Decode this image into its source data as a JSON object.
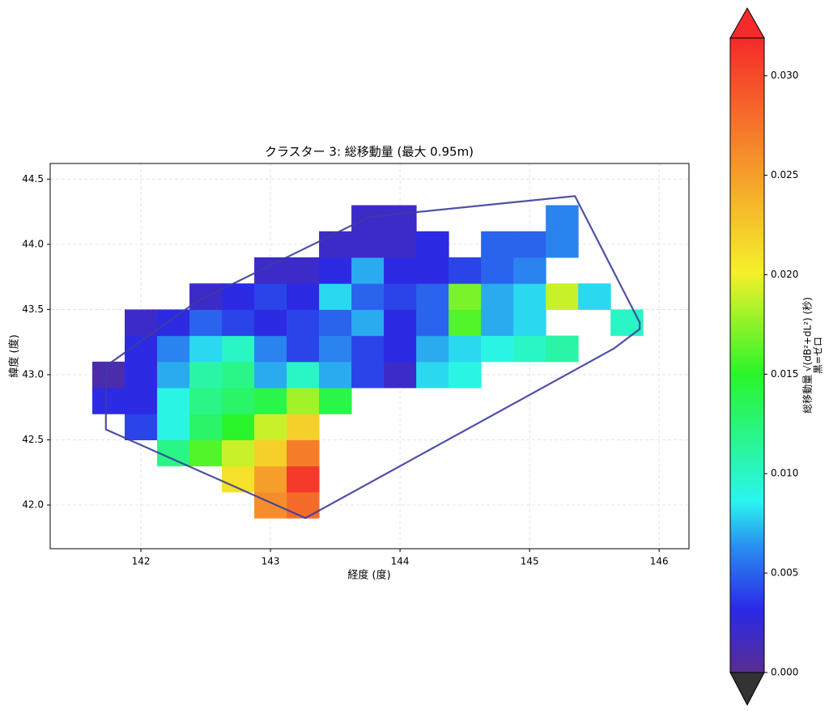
{
  "chart_data": {
    "type": "heatmap",
    "title": "クラスター 3: 総移動量 (最大 0.95m)",
    "xlabel": "経度 (度)",
    "ylabel": "緯度 (度)",
    "x": [
      141.75,
      142.0,
      142.25,
      142.5,
      142.75,
      143.0,
      143.25,
      143.5,
      143.75,
      144.0,
      144.25,
      144.5,
      144.75,
      145.0,
      145.25,
      145.5,
      145.75
    ],
    "y": [
      42.0,
      42.2,
      42.4,
      42.6,
      42.8,
      43.0,
      43.2,
      43.4,
      43.6,
      43.8,
      44.0,
      44.2
    ],
    "z": [
      [
        null,
        null,
        null,
        null,
        null,
        0.026,
        0.028,
        null,
        null,
        null,
        null,
        null,
        null,
        null,
        null,
        null,
        null
      ],
      [
        null,
        null,
        null,
        null,
        0.021,
        0.025,
        0.031,
        null,
        null,
        null,
        null,
        null,
        null,
        null,
        null,
        null,
        null
      ],
      [
        null,
        null,
        0.012,
        0.016,
        0.019,
        0.022,
        0.027,
        null,
        null,
        null,
        null,
        null,
        null,
        null,
        null,
        null,
        null
      ],
      [
        null,
        0.004,
        0.009,
        0.013,
        0.015,
        0.019,
        0.022,
        null,
        null,
        null,
        null,
        null,
        null,
        null,
        null,
        null,
        null
      ],
      [
        0.003,
        0.003,
        0.009,
        0.012,
        0.013,
        0.014,
        0.018,
        0.014,
        null,
        null,
        null,
        null,
        null,
        null,
        null,
        null,
        null
      ],
      [
        0.001,
        0.003,
        0.007,
        0.011,
        0.012,
        0.007,
        0.01,
        0.007,
        0.004,
        0.002,
        0.008,
        0.009,
        null,
        null,
        null,
        null,
        null
      ],
      [
        null,
        0.003,
        0.006,
        0.008,
        0.01,
        0.006,
        0.004,
        0.006,
        0.004,
        0.003,
        0.007,
        0.008,
        0.009,
        0.01,
        0.011,
        null,
        null
      ],
      [
        null,
        0.002,
        0.003,
        0.005,
        0.004,
        0.003,
        0.004,
        0.005,
        0.007,
        0.003,
        0.005,
        0.016,
        0.007,
        0.008,
        null,
        null,
        0.01
      ],
      [
        null,
        null,
        null,
        0.002,
        0.003,
        0.004,
        0.003,
        0.008,
        0.005,
        0.004,
        0.005,
        0.017,
        0.007,
        0.008,
        0.019,
        0.008,
        null
      ],
      [
        null,
        null,
        null,
        null,
        null,
        0.002,
        0.002,
        0.003,
        0.007,
        0.003,
        0.003,
        0.004,
        0.005,
        0.006,
        null,
        null,
        null
      ],
      [
        null,
        null,
        null,
        null,
        null,
        null,
        null,
        0.002,
        0.002,
        0.002,
        0.003,
        null,
        0.005,
        0.005,
        0.006,
        null,
        null
      ],
      [
        null,
        null,
        null,
        null,
        null,
        null,
        null,
        null,
        0.002,
        0.002,
        null,
        null,
        null,
        null,
        0.006,
        null,
        null
      ]
    ],
    "xlim": [
      141.3,
      146.23
    ],
    "ylim": [
      41.665,
      44.62
    ],
    "xticks": [
      142,
      143,
      144,
      145,
      146
    ],
    "yticks": [
      {
        "value": 42,
        "label": "42.0"
      },
      42.5,
      {
        "value": 43,
        "label": "43.0"
      },
      43.5,
      {
        "value": 44,
        "label": "44.0"
      },
      44.5
    ],
    "grid": true,
    "hull": {
      "color": "#3c3ca0",
      "x": [
        141.75,
        142.43,
        143.76,
        145.35,
        145.85,
        145.85,
        145.65,
        143.27,
        141.73,
        141.73,
        141.75
      ],
      "y": [
        43.08,
        43.56,
        44.21,
        44.37,
        43.4,
        43.35,
        43.2,
        41.9,
        42.58,
        43.02,
        43.08
      ]
    },
    "colorbar": {
      "label": [
        "総移動量 √(dB²+dL²) (秒)",
        "黒=ゼロ"
      ],
      "lim": [
        0,
        0.0319
      ],
      "ticks": [
        {
          "value": 0,
          "label": "0.000"
        },
        {
          "value": 0.005,
          "label": "0.005"
        },
        {
          "value": 0.01,
          "label": "0.010"
        },
        {
          "value": 0.015,
          "label": "0.015"
        },
        {
          "value": 0.02,
          "label": "0.020"
        },
        {
          "value": 0.025,
          "label": "0.025"
        },
        {
          "value": 0.03,
          "label": "0.030"
        }
      ],
      "colorscale": [
        [
          0,
          "#5a2d91"
        ],
        [
          0.1,
          "#2a2ae8"
        ],
        [
          0.2,
          "#2a8ff0"
        ],
        [
          0.27,
          "#2af5f0"
        ],
        [
          0.47,
          "#2af52a"
        ],
        [
          0.63,
          "#f5f02a"
        ],
        [
          0.8,
          "#f5962a"
        ],
        [
          1,
          "#f52a2a"
        ]
      ],
      "under_color": "#333333",
      "over_color": "#f52a2a"
    }
  }
}
